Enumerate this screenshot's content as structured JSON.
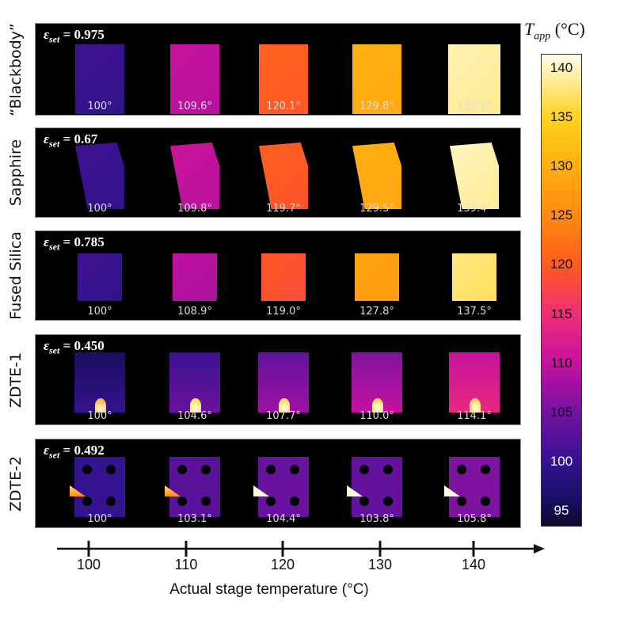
{
  "rows": [
    {
      "label": "“Blackbody”",
      "epsilon_symbol": "ε",
      "epsilon_sub": "set",
      "epsilon_value": "= 0.975",
      "shape": "rect",
      "readings": [
        "100°",
        "109.6°",
        "120.1°",
        "129.8°",
        "139.1°"
      ],
      "values": [
        100,
        109.6,
        120.1,
        129.8,
        139.1
      ]
    },
    {
      "label": "Sapphire",
      "epsilon_symbol": "ε",
      "epsilon_sub": "set",
      "epsilon_value": "= 0.67",
      "shape": "skew",
      "readings": [
        "100°",
        "109.8°",
        "119.7°",
        "129.5°",
        "139.4°"
      ],
      "values": [
        100,
        109.8,
        119.7,
        129.5,
        139.4
      ]
    },
    {
      "label": "Fused Silica",
      "epsilon_symbol": "ε",
      "epsilon_sub": "set",
      "epsilon_value": "= 0.785",
      "shape": "small",
      "readings": [
        "100°",
        "108.9°",
        "119.0°",
        "127.8°",
        "137.5°"
      ],
      "values": [
        100,
        108.9,
        119.0,
        127.8,
        137.5
      ]
    },
    {
      "label": "ZDTE-1",
      "epsilon_symbol": "ε",
      "epsilon_sub": "set",
      "epsilon_value": "= 0.450",
      "shape": "heater",
      "readings": [
        "100°",
        "104.6°",
        "107.7°",
        "110.0°",
        "114.1°"
      ],
      "values": [
        100,
        104.6,
        107.7,
        110.0,
        114.1
      ]
    },
    {
      "label": "ZDTE-2",
      "epsilon_symbol": "ε",
      "epsilon_sub": "set",
      "epsilon_value": "= 0.492",
      "shape": "holes",
      "readings": [
        "100°",
        "103.1°",
        "104.4°",
        "103.8°",
        "105.8°"
      ],
      "values": [
        100,
        103.1,
        104.4,
        103.8,
        105.8
      ]
    }
  ],
  "colorbar": {
    "title": "T",
    "title_sub": "app",
    "title_unit": " (°C)",
    "ticks": [
      "140",
      "135",
      "130",
      "125",
      "120",
      "115",
      "110",
      "105",
      "100",
      "95"
    ],
    "tick_values": [
      140,
      135,
      130,
      125,
      120,
      115,
      110,
      105,
      100,
      95
    ],
    "range": [
      93.5,
      141.5
    ],
    "stops": [
      [
        93.5,
        "#0b0a30"
      ],
      [
        97,
        "#1d1070"
      ],
      [
        100,
        "#35128f"
      ],
      [
        105,
        "#7012a2"
      ],
      [
        110,
        "#c5119e"
      ],
      [
        115,
        "#ef2d78"
      ],
      [
        120,
        "#ff5a1f"
      ],
      [
        125,
        "#ff8a10"
      ],
      [
        130,
        "#ffae10"
      ],
      [
        135,
        "#ffd21c"
      ],
      [
        141.5,
        "#fffde8"
      ]
    ]
  },
  "x_axis": {
    "label": "Actual stage temperature (°C)",
    "ticks": [
      "100",
      "110",
      "120",
      "130",
      "140"
    ]
  }
}
